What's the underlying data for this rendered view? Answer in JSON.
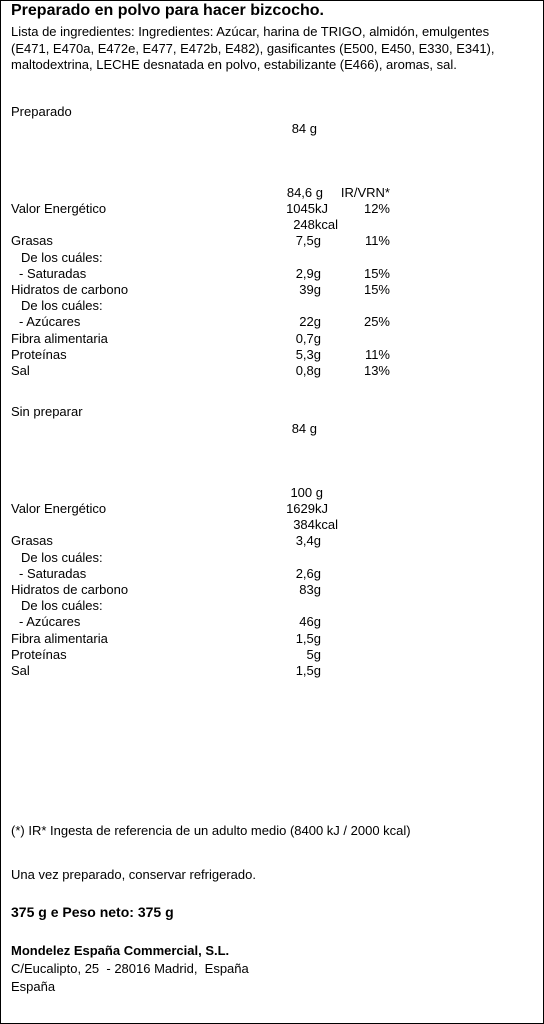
{
  "title": "Preparado en polvo para hacer bizcocho.",
  "ingredients": "Lista de ingredientes: Ingredientes: Azúcar, harina de TRIGO, almidón, emulgentes (E471, E470a, E472e, E477, E472b, E482), gasificantes (E500, E450, E330, E341), maltodextrina, LECHE desnatada en polvo, estabilizante (E466), aromas, sal.",
  "sections": [
    {
      "label": "Preparado",
      "portion": "84 g",
      "amount": "84,6 g",
      "pct_header": "IR/VRN*",
      "rows": [
        {
          "name": "Valor Energético",
          "values": [
            "1045kJ",
            "248kcal"
          ],
          "pct": "12%"
        },
        {
          "name": "Grasas",
          "values": [
            "7,5g"
          ],
          "pct": "11%"
        },
        {
          "name": "De los cuáles:"
        },
        {
          "name": "- Saturadas",
          "values": [
            "2,9g"
          ],
          "pct": "15%"
        },
        {
          "name": "Hidratos de carbono",
          "values": [
            "39g"
          ],
          "pct": "15%"
        },
        {
          "name": "De los cuáles:"
        },
        {
          "name": "- Azúcares",
          "values": [
            "22g"
          ],
          "pct": "25%"
        },
        {
          "name": "Fibra alimentaria",
          "values": [
            "0,7g"
          ]
        },
        {
          "name": "Proteínas",
          "values": [
            "5,3g"
          ],
          "pct": "11%"
        },
        {
          "name": "Sal",
          "values": [
            "0,8g"
          ],
          "pct": "13%"
        }
      ]
    },
    {
      "label": "Sin preparar",
      "portion": "84 g",
      "amount": "100 g",
      "rows": [
        {
          "name": "Valor Energético",
          "values": [
            "1629kJ",
            "384kcal"
          ]
        },
        {
          "name": "Grasas",
          "values": [
            "3,4g"
          ]
        },
        {
          "name": "De los cuáles:"
        },
        {
          "name": "- Saturadas",
          "values": [
            "2,6g"
          ]
        },
        {
          "name": "Hidratos de carbono",
          "values": [
            "83g"
          ]
        },
        {
          "name": "De los cuáles:"
        },
        {
          "name": "- Azúcares",
          "values": [
            "46g"
          ]
        },
        {
          "name": "Fibra alimentaria",
          "values": [
            "1,5g"
          ]
        },
        {
          "name": "Proteínas",
          "values": [
            "5g"
          ]
        },
        {
          "name": "Sal",
          "values": [
            "1,5g"
          ]
        }
      ]
    }
  ],
  "footnote": "(*) IR* Ingesta de referencia de un adulto medio (8400 kJ / 2000 kcal)",
  "storage": "Una vez preparado, conservar refrigerado.",
  "net_weight": "375 g e Peso neto: 375 g",
  "company": {
    "name": "Mondelez España Commercial, S.L.",
    "address": "C/Eucalipto, 25  - 28016 Madrid,  España",
    "country": "España"
  }
}
